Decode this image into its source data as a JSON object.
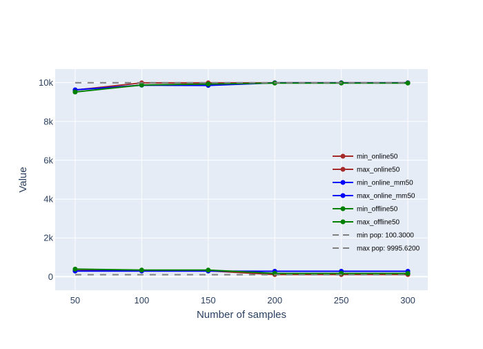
{
  "chart_data": {
    "type": "line",
    "title": "",
    "xlabel": "Number of samples",
    "ylabel": "Value",
    "x": [
      50,
      100,
      150,
      200,
      250,
      300
    ],
    "xlim": [
      35,
      315
    ],
    "ylim": [
      -700,
      10700
    ],
    "x_ticks": [
      50,
      100,
      150,
      200,
      250,
      300
    ],
    "y_ticks": [
      0,
      2000,
      4000,
      6000,
      8000,
      10000
    ],
    "y_tick_labels": [
      "0",
      "2k",
      "4k",
      "6k",
      "8k",
      "10k"
    ],
    "grid": true,
    "legend_position": "right, inside plot area",
    "background": "#e5ecf6",
    "series": [
      {
        "name": "min_online50",
        "color": "#a52a2a",
        "mode": "lines+markers",
        "dash": "solid",
        "values": [
          310,
          330,
          300,
          110,
          110,
          110
        ]
      },
      {
        "name": "max_online50",
        "color": "#a52a2a",
        "mode": "lines+markers",
        "dash": "solid",
        "values": [
          9620,
          9990,
          9990,
          9995,
          9995,
          9995
        ]
      },
      {
        "name": "min_online_mm50",
        "color": "#0000ff",
        "mode": "lines+markers",
        "dash": "solid",
        "values": [
          290,
          290,
          290,
          280,
          280,
          280
        ]
      },
      {
        "name": "max_online_mm50",
        "color": "#0000ff",
        "mode": "lines+markers",
        "dash": "solid",
        "values": [
          9630,
          9870,
          9860,
          9990,
          9990,
          9990
        ]
      },
      {
        "name": "min_offline50",
        "color": "#008000",
        "mode": "lines+markers",
        "dash": "solid",
        "values": [
          390,
          340,
          340,
          170,
          170,
          170
        ]
      },
      {
        "name": "max_offline50",
        "color": "#008000",
        "mode": "lines+markers",
        "dash": "solid",
        "values": [
          9520,
          9880,
          9930,
          9980,
          9980,
          9980
        ]
      },
      {
        "name": "min pop: 100.3000",
        "color": "#808080",
        "mode": "lines",
        "dash": "dash",
        "values": [
          100.3,
          100.3,
          100.3,
          100.3,
          100.3,
          100.3
        ]
      },
      {
        "name": "max pop: 9995.6200",
        "color": "#808080",
        "mode": "lines",
        "dash": "dash",
        "values": [
          9995.62,
          9995.62,
          9995.62,
          9995.62,
          9995.62,
          9995.62
        ]
      }
    ]
  }
}
